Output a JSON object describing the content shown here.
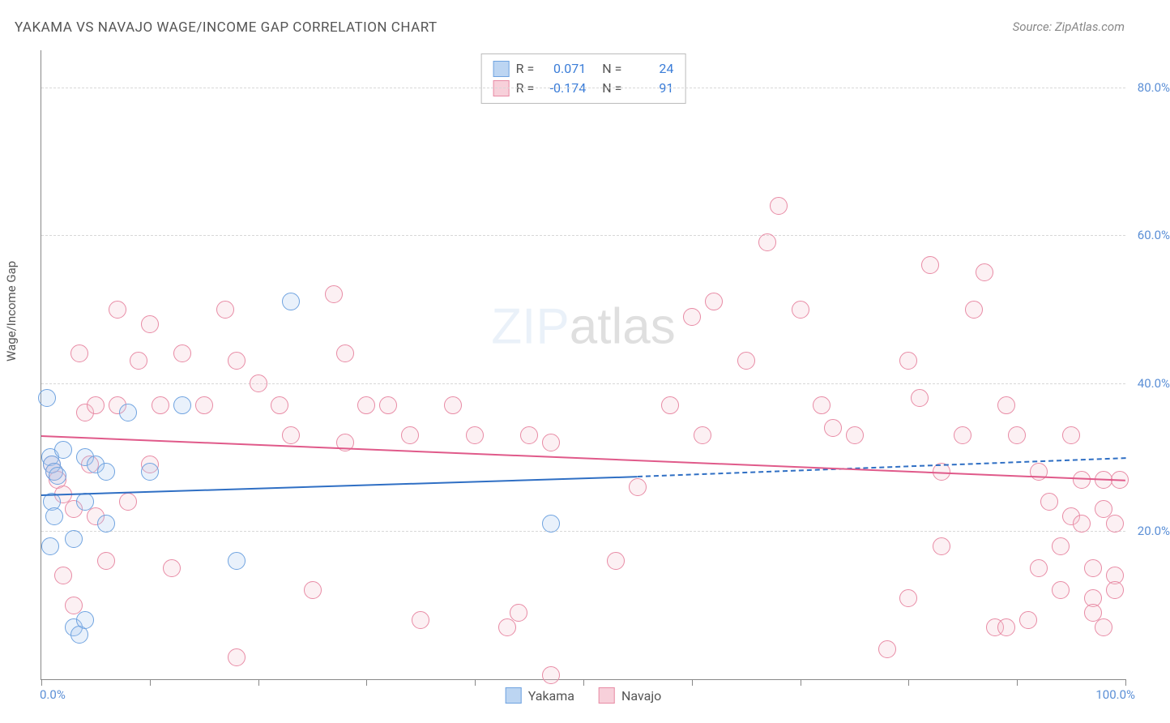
{
  "title": "YAKAMA VS NAVAJO WAGE/INCOME GAP CORRELATION CHART",
  "source": "Source: ZipAtlas.com",
  "ylabel": "Wage/Income Gap",
  "watermark_a": "ZIP",
  "watermark_b": "atlas",
  "chart": {
    "type": "scatter",
    "background_color": "#ffffff",
    "grid_color": "#d8d8d8",
    "axis_color": "#888888",
    "xlim": [
      0,
      100
    ],
    "ylim": [
      0,
      85
    ],
    "ytick_positions": [
      20,
      40,
      60,
      80
    ],
    "ytick_labels": [
      "20.0%",
      "40.0%",
      "60.0%",
      "80.0%"
    ],
    "xtick_positions": [
      0,
      10,
      20,
      30,
      40,
      50,
      60,
      70,
      80,
      90,
      100
    ],
    "xaxis_left_label": "0.0%",
    "xaxis_right_label": "100.0%",
    "marker_radius": 10,
    "marker_stroke_width": 1.5,
    "marker_fill_opacity": 0.25
  },
  "series": {
    "yakama": {
      "label": "Yakama",
      "fill": "#a8c8ef",
      "stroke": "#6fa3e0",
      "swatch_fill": "#bcd5f2",
      "swatch_stroke": "#6fa3e0",
      "R_label": "R =",
      "R_value": "0.071",
      "N_label": "N =",
      "N_value": "24",
      "trend_color": "#2f6fc4",
      "trend_start": [
        0,
        25
      ],
      "trend_solid_end": [
        55,
        27.5
      ],
      "trend_dash_end": [
        100,
        30
      ],
      "points": [
        [
          0.5,
          38
        ],
        [
          0.8,
          30
        ],
        [
          1,
          29
        ],
        [
          1.2,
          28
        ],
        [
          1.5,
          27.5
        ],
        [
          1,
          24
        ],
        [
          1.2,
          22
        ],
        [
          0.8,
          18
        ],
        [
          2,
          31
        ],
        [
          3,
          7
        ],
        [
          3.5,
          6
        ],
        [
          4,
          8
        ],
        [
          3,
          19
        ],
        [
          4,
          24
        ],
        [
          4,
          30
        ],
        [
          5,
          29
        ],
        [
          6,
          21
        ],
        [
          6,
          28
        ],
        [
          8,
          36
        ],
        [
          10,
          28
        ],
        [
          13,
          37
        ],
        [
          18,
          16
        ],
        [
          23,
          51
        ],
        [
          47,
          21
        ]
      ]
    },
    "navajo": {
      "label": "Navajo",
      "fill": "#f5c4d0",
      "stroke": "#e88ba5",
      "swatch_fill": "#f7d0da",
      "swatch_stroke": "#e88ba5",
      "R_label": "R =",
      "R_value": "-0.174",
      "N_label": "N =",
      "N_value": "91",
      "trend_color": "#e05a8a",
      "trend_start": [
        0,
        33
      ],
      "trend_end": [
        100,
        27
      ],
      "points": [
        [
          1,
          29
        ],
        [
          1.2,
          28
        ],
        [
          1.5,
          27
        ],
        [
          2,
          25
        ],
        [
          2,
          14
        ],
        [
          3,
          10
        ],
        [
          3,
          23
        ],
        [
          3.5,
          44
        ],
        [
          4,
          36
        ],
        [
          4.5,
          29
        ],
        [
          5,
          37
        ],
        [
          5,
          22
        ],
        [
          6,
          16
        ],
        [
          7,
          50
        ],
        [
          7,
          37
        ],
        [
          8,
          24
        ],
        [
          9,
          43
        ],
        [
          10,
          48
        ],
        [
          10,
          29
        ],
        [
          11,
          37
        ],
        [
          12,
          15
        ],
        [
          13,
          44
        ],
        [
          15,
          37
        ],
        [
          17,
          50
        ],
        [
          18,
          43
        ],
        [
          18,
          3
        ],
        [
          20,
          40
        ],
        [
          22,
          37
        ],
        [
          23,
          33
        ],
        [
          25,
          12
        ],
        [
          27,
          52
        ],
        [
          28,
          44
        ],
        [
          28,
          32
        ],
        [
          30,
          37
        ],
        [
          32,
          37
        ],
        [
          34,
          33
        ],
        [
          35,
          8
        ],
        [
          38,
          37
        ],
        [
          40,
          33
        ],
        [
          43,
          7
        ],
        [
          44,
          9
        ],
        [
          45,
          33
        ],
        [
          47,
          0.5
        ],
        [
          47,
          32
        ],
        [
          53,
          16
        ],
        [
          55,
          26
        ],
        [
          58,
          37
        ],
        [
          60,
          49
        ],
        [
          61,
          33
        ],
        [
          62,
          51
        ],
        [
          65,
          43
        ],
        [
          67,
          59
        ],
        [
          68,
          64
        ],
        [
          70,
          50
        ],
        [
          72,
          37
        ],
        [
          73,
          34
        ],
        [
          75,
          33
        ],
        [
          78,
          4
        ],
        [
          80,
          11
        ],
        [
          80,
          43
        ],
        [
          81,
          38
        ],
        [
          82,
          56
        ],
        [
          83,
          28
        ],
        [
          83,
          18
        ],
        [
          85,
          33
        ],
        [
          86,
          50
        ],
        [
          87,
          55
        ],
        [
          88,
          7
        ],
        [
          89,
          7
        ],
        [
          89,
          37
        ],
        [
          90,
          33
        ],
        [
          91,
          8
        ],
        [
          92,
          15
        ],
        [
          92,
          28
        ],
        [
          93,
          24
        ],
        [
          94,
          18
        ],
        [
          94,
          12
        ],
        [
          95,
          22
        ],
        [
          95,
          33
        ],
        [
          96,
          27
        ],
        [
          96,
          21
        ],
        [
          97,
          15
        ],
        [
          97,
          11
        ],
        [
          97,
          9
        ],
        [
          98,
          27
        ],
        [
          98,
          23
        ],
        [
          98,
          7
        ],
        [
          99,
          21
        ],
        [
          99,
          14
        ],
        [
          99,
          12
        ],
        [
          99.5,
          27
        ]
      ]
    }
  }
}
